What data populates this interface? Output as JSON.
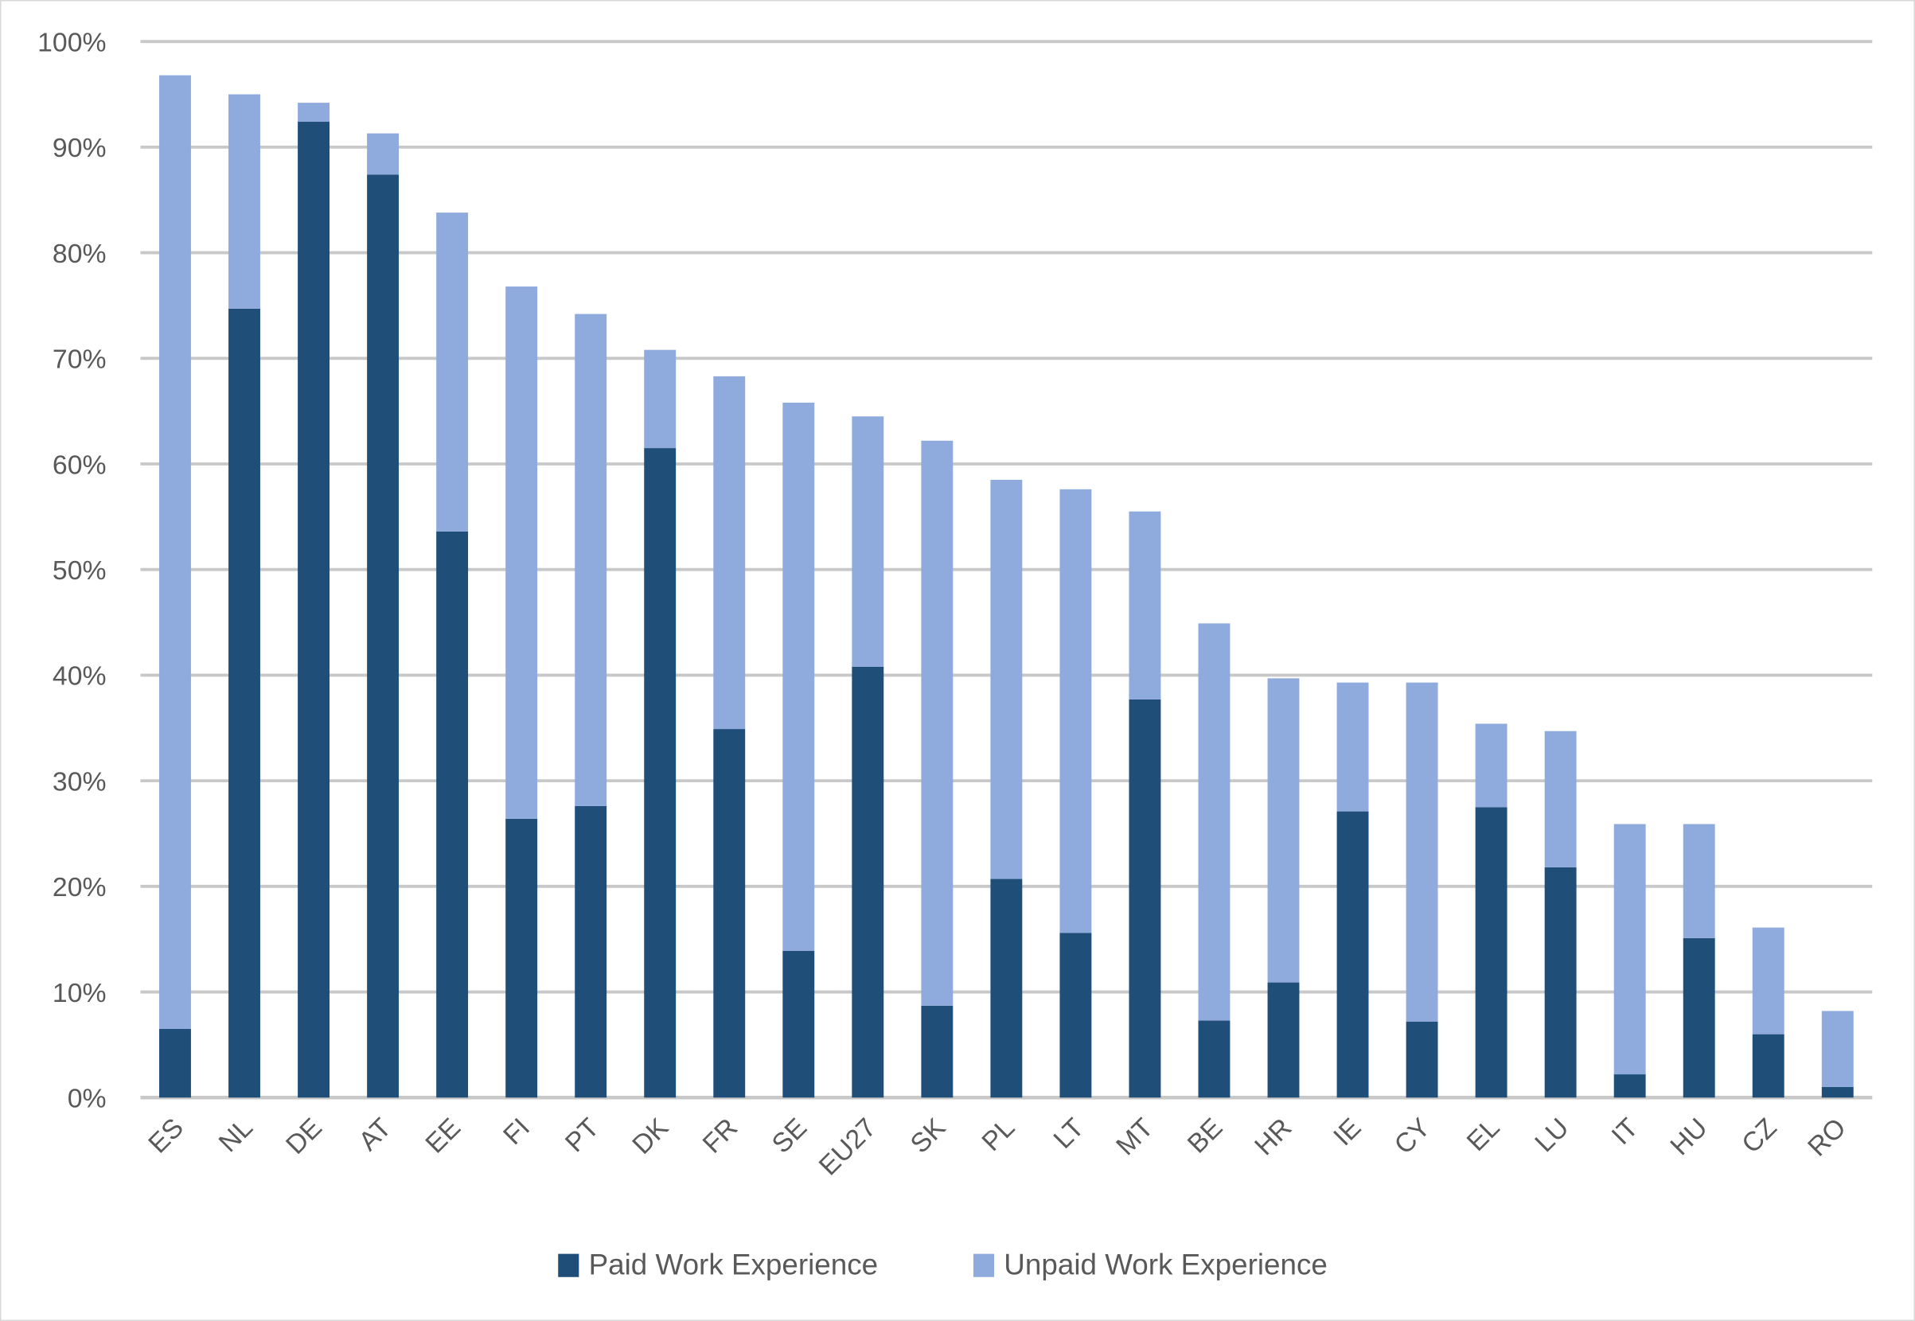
{
  "chart_data": {
    "type": "bar",
    "stacked": true,
    "title": "",
    "xlabel": "",
    "ylabel": "",
    "ylim": [
      0,
      100
    ],
    "yticks": [
      "0%",
      "10%",
      "20%",
      "30%",
      "40%",
      "50%",
      "60%",
      "70%",
      "80%",
      "90%",
      "100%"
    ],
    "grid": true,
    "legend_position": "bottom",
    "categories": [
      "ES",
      "NL",
      "DE",
      "AT",
      "EE",
      "FI",
      "PT",
      "DK",
      "FR",
      "SE",
      "EU27",
      "SK",
      "PL",
      "LT",
      "MT",
      "BE",
      "HR",
      "IE",
      "CY",
      "EL",
      "LU",
      "IT",
      "HU",
      "CZ",
      "RO"
    ],
    "series": [
      {
        "name": "Paid Work Experience",
        "color": "#1f4e79",
        "values": [
          6.5,
          74.7,
          92.4,
          87.4,
          53.6,
          26.4,
          27.6,
          61.5,
          34.9,
          13.9,
          40.8,
          8.7,
          20.7,
          15.6,
          37.7,
          7.3,
          10.9,
          27.1,
          7.2,
          27.5,
          21.8,
          2.2,
          15.1,
          6.0,
          1.0
        ]
      },
      {
        "name": "Unpaid Work Experience",
        "color": "#8faadc",
        "values": [
          90.3,
          20.3,
          1.8,
          3.9,
          30.2,
          50.4,
          46.6,
          9.3,
          33.4,
          51.9,
          23.7,
          53.5,
          37.8,
          42.0,
          17.8,
          37.6,
          28.8,
          12.2,
          32.1,
          7.9,
          12.9,
          23.7,
          10.8,
          10.1,
          7.2
        ]
      }
    ]
  }
}
